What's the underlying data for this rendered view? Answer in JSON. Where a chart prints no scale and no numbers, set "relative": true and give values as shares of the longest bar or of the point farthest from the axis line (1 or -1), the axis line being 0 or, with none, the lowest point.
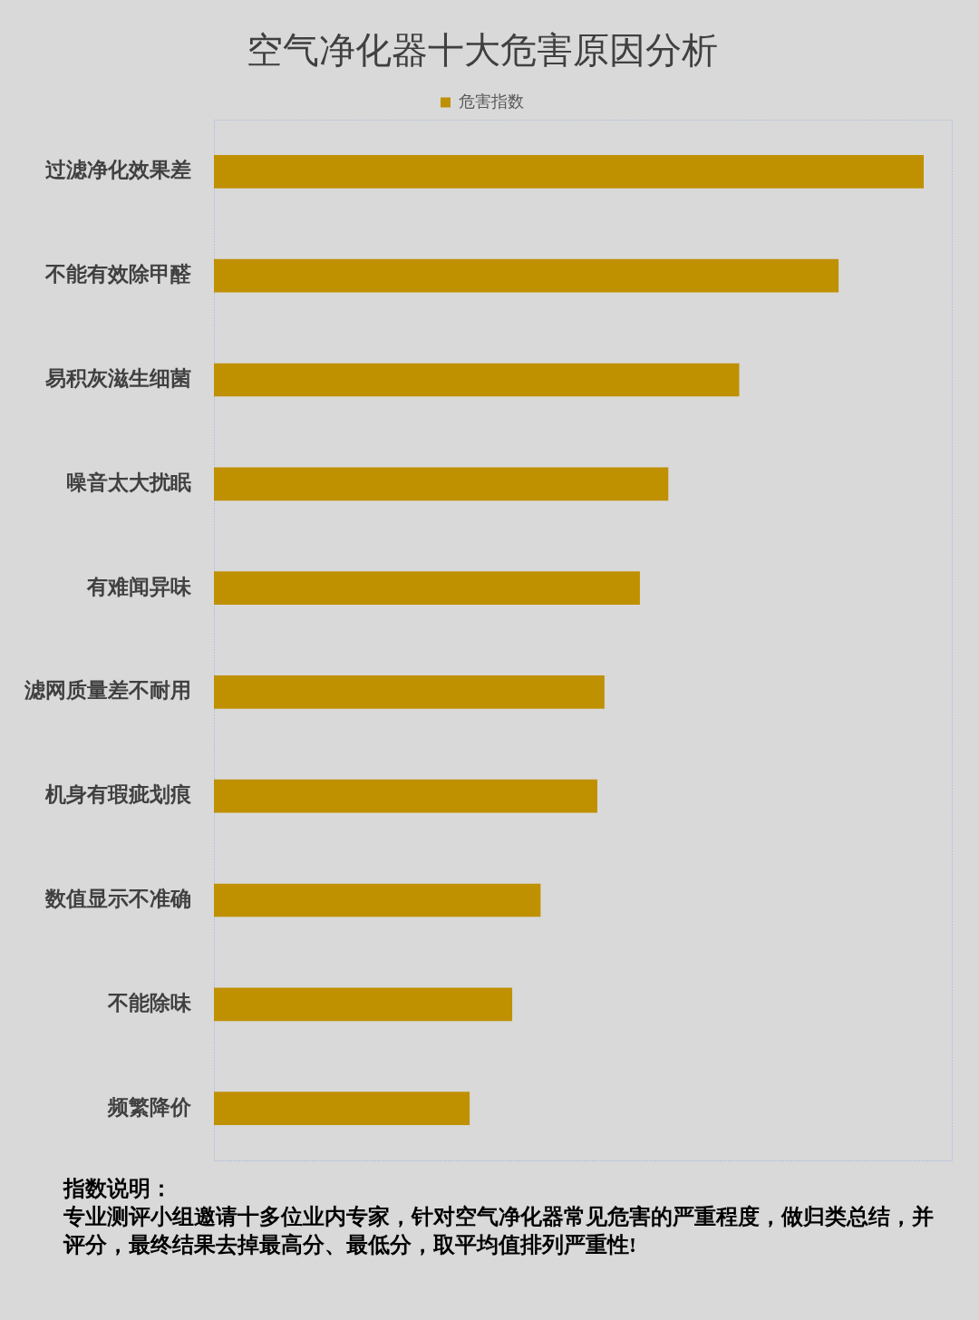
{
  "chart_data": {
    "type": "bar",
    "orientation": "horizontal",
    "relative": true,
    "title": "空气净化器十大危害原因分析",
    "categories": [
      "过滤净化效果差",
      "不能有效除甲醛",
      "易积灰滋生细菌",
      "噪音太大扰眠",
      "有难闻异味",
      "滤网质量差不耐用",
      "机身有瑕疵划痕",
      "数值显示不准确",
      "不能除味",
      "频繁降价"
    ],
    "series": [
      {
        "name": "危害指数",
        "color": "#bf9000",
        "values": [
          1,
          0.88,
          0.74,
          0.64,
          0.6,
          0.55,
          0.54,
          0.46,
          0.42,
          0.36
        ]
      }
    ],
    "legend": "top",
    "annotations": [
      "指数说明：",
      "专业测评小组邀请十多位业内专家，针对空气净化器常见危害的严重程度，做归类总结，并评分，最终结果去掉最高分、最低分，取平均值排列严重性!"
    ]
  }
}
